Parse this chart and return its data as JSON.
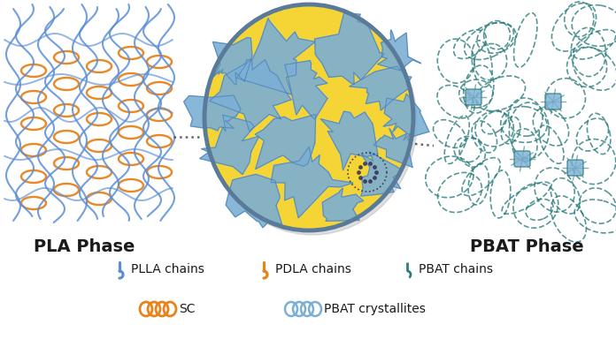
{
  "background_color": "#ffffff",
  "pla_phase_label": "PLA Phase",
  "pbat_phase_label": "PBAT Phase",
  "plla_color": "#5B8ED6",
  "pdla_color": "#E8821A",
  "pbat_color": "#2E7D7D",
  "yellow_fill": "#F5D535",
  "blue_patch_color": "#7BAFD4",
  "blue_border_color": "#4A7FB5",
  "ellipse_border": "#5A7A9A",
  "dot_color": "#333333",
  "label_fontsize": 13,
  "legend_fontsize": 10,
  "legend_labels": [
    "PLLA chains",
    "PDLA chains",
    "PBAT chains",
    "SC",
    "PBAT crystallites"
  ],
  "sc_icon_color": "#E8821A",
  "pbat_cryst_icon_color": "#7BAFD4"
}
